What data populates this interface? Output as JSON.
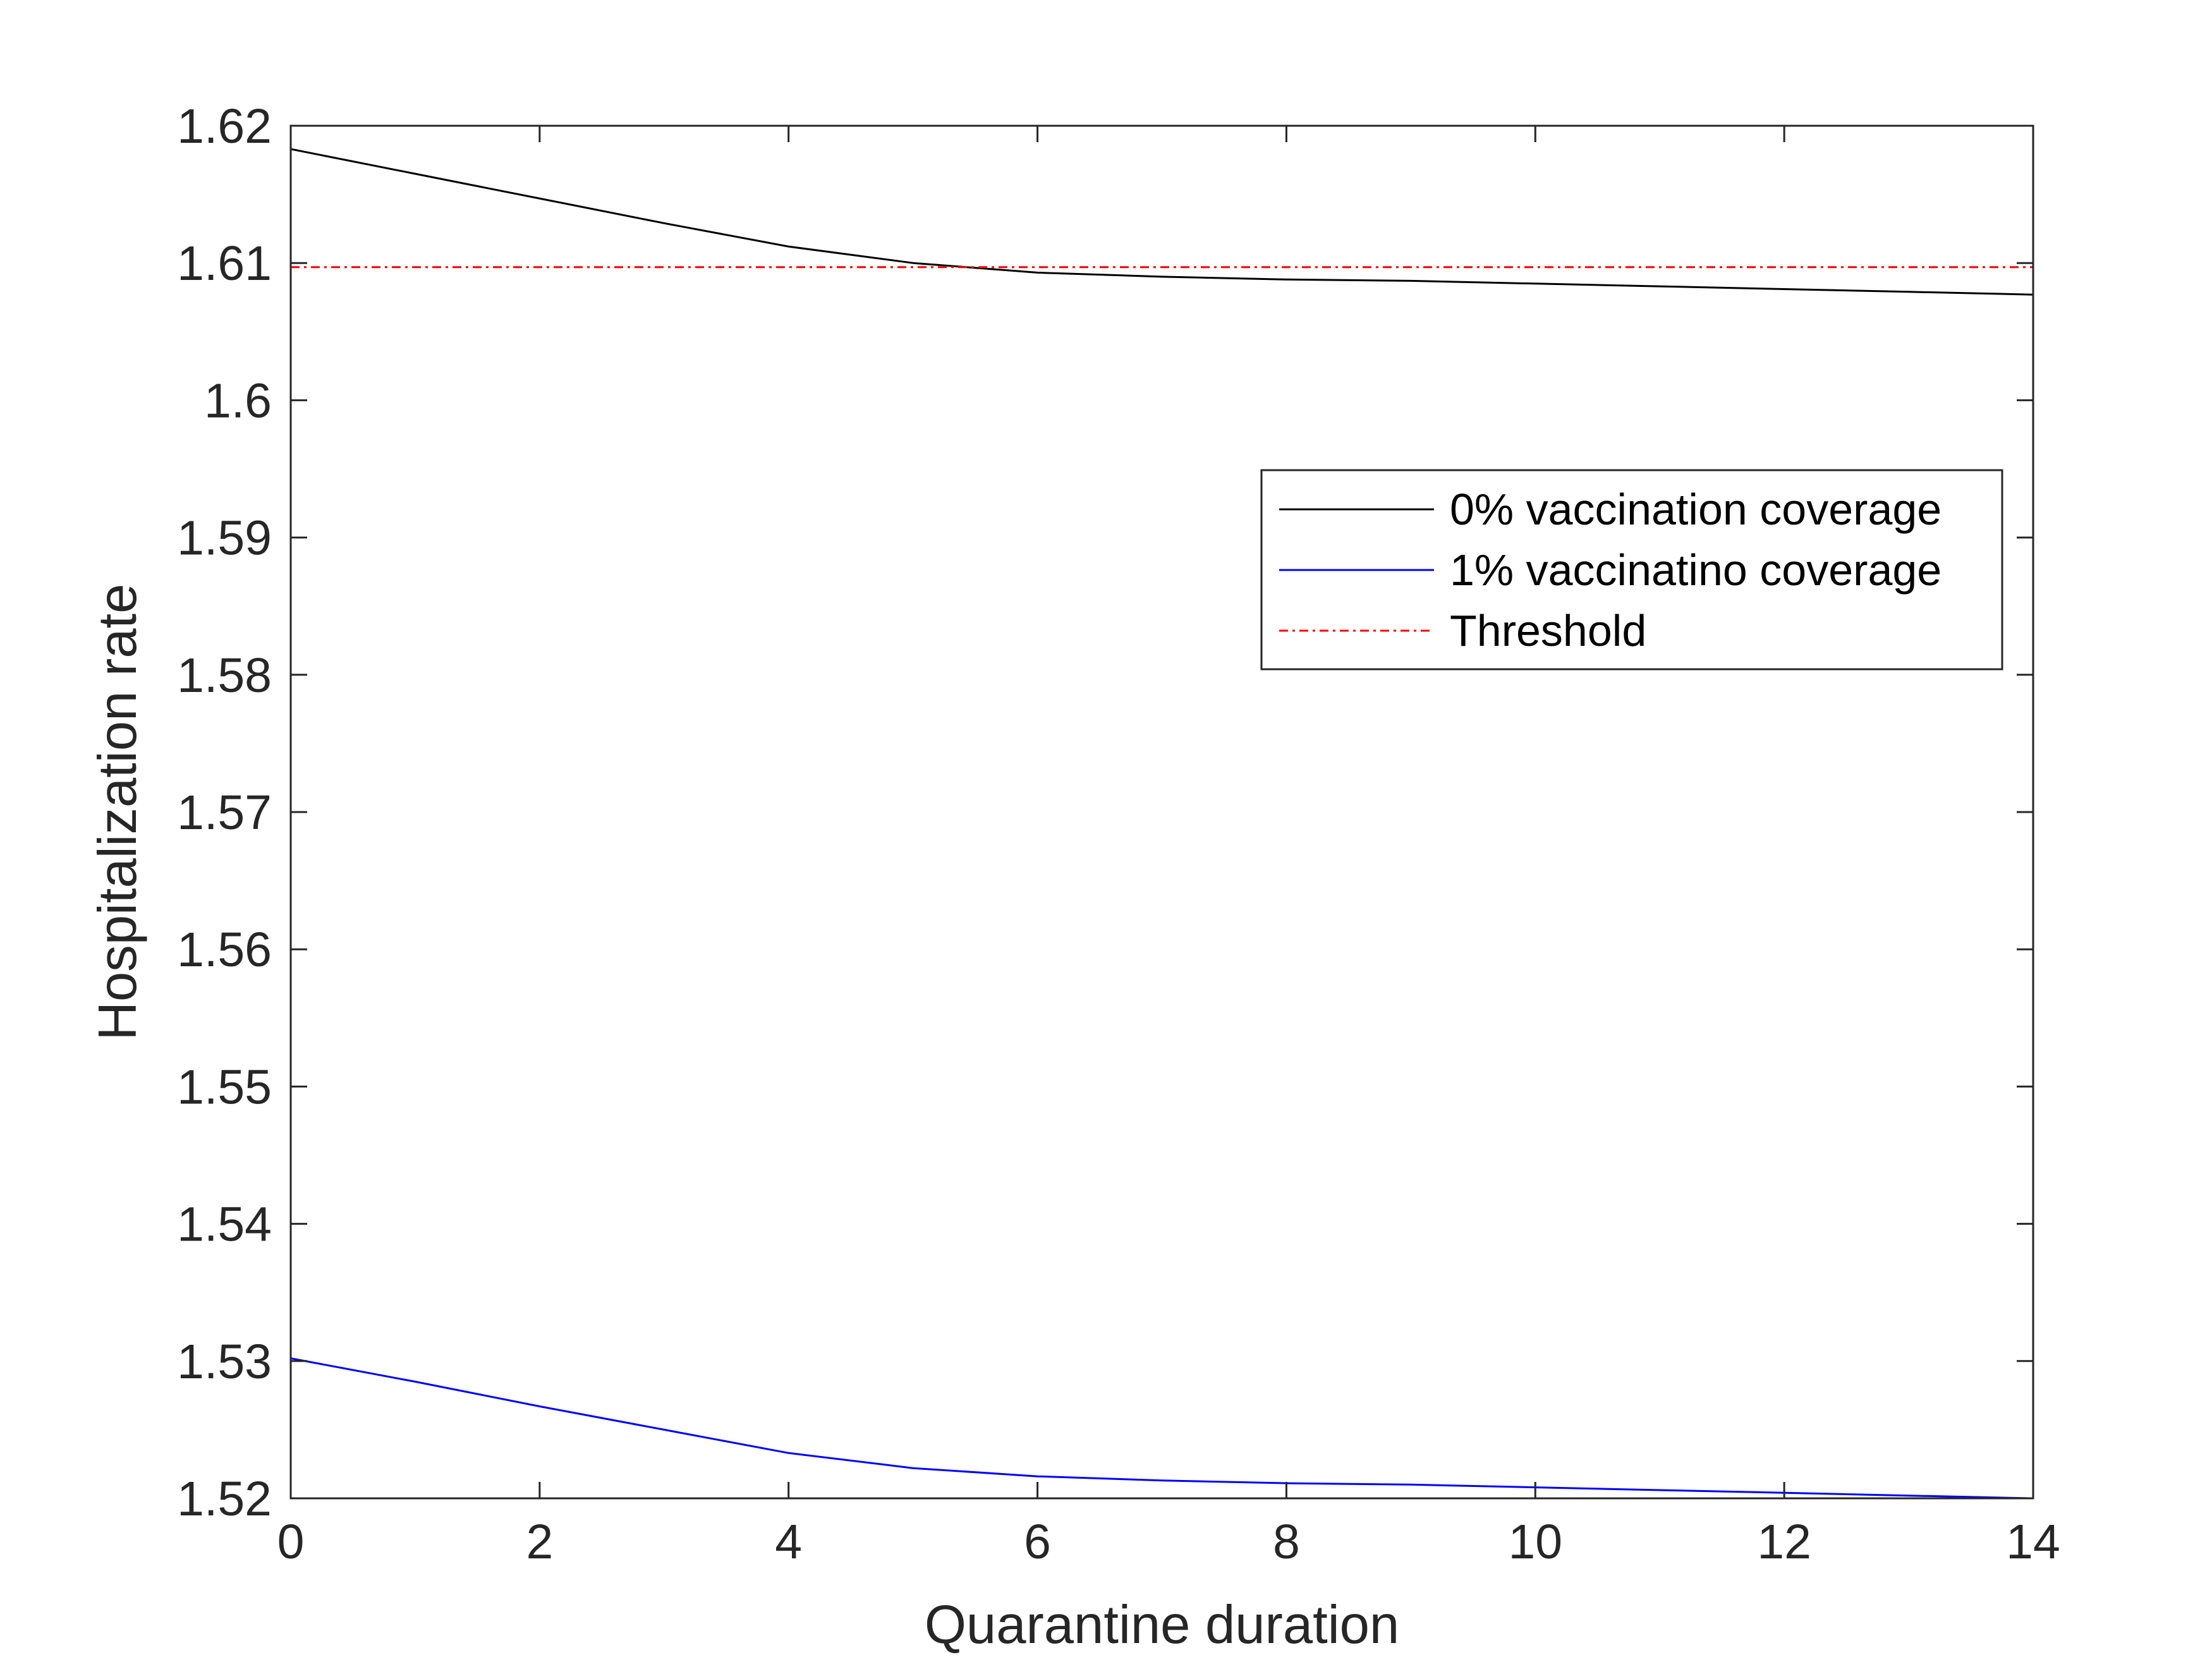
{
  "chart_data": {
    "type": "line",
    "title": "",
    "xlabel": "Quarantine duration",
    "ylabel": "Hospitalization rate",
    "xlim": [
      0,
      14
    ],
    "ylim": [
      1.52,
      1.62
    ],
    "x_ticks": [
      "0",
      "2",
      "4",
      "6",
      "8",
      "10",
      "12",
      "14"
    ],
    "y_ticks": [
      "1.52",
      "1.53",
      "1.54",
      "1.55",
      "1.56",
      "1.57",
      "1.58",
      "1.59",
      "1.6",
      "1.61",
      "1.62"
    ],
    "grid": false,
    "legend_position": "upper-right",
    "x": [
      0,
      1,
      2,
      3,
      4,
      5,
      6,
      7,
      8,
      9,
      10,
      11,
      12,
      13,
      14
    ],
    "series": [
      {
        "name": "0% vaccination coverage",
        "color": "#000000",
        "style": "solid",
        "values": [
          1.6183,
          1.6165,
          1.6147,
          1.6129,
          1.6112,
          1.61,
          1.6093,
          1.609,
          1.6088,
          1.6087,
          1.6085,
          1.6083,
          1.6081,
          1.6079,
          1.6077
        ]
      },
      {
        "name": "1% vaccinatino coverage",
        "color": "#0000ff",
        "style": "solid",
        "values": [
          1.5302,
          1.5285,
          1.5267,
          1.525,
          1.5233,
          1.5222,
          1.5216,
          1.5213,
          1.5211,
          1.521,
          1.5208,
          1.5206,
          1.5204,
          1.5202,
          1.52
        ]
      },
      {
        "name": "Threshold",
        "color": "#ff0000",
        "style": "dashdot",
        "values": [
          1.6097,
          1.6097,
          1.6097,
          1.6097,
          1.6097,
          1.6097,
          1.6097,
          1.6097,
          1.6097,
          1.6097,
          1.6097,
          1.6097,
          1.6097,
          1.6097,
          1.6097
        ]
      }
    ]
  }
}
